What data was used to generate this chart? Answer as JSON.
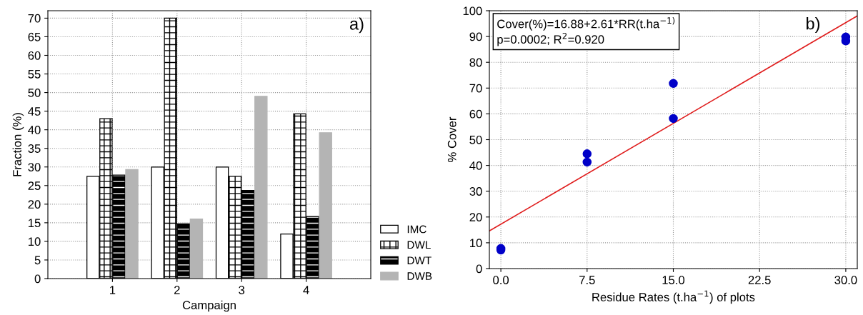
{
  "chart_data": [
    {
      "type": "bar",
      "xlabel": "Campaign",
      "ylabel": "Fraction (%)",
      "categories": [
        "1",
        "2",
        "3",
        "4"
      ],
      "series": [
        {
          "name": "IMC",
          "color": "#ffffff",
          "values": [
            27.5,
            30,
            30,
            12
          ]
        },
        {
          "name": "DWL",
          "color": "#000000",
          "values": [
            43,
            70,
            27.5,
            44.3
          ]
        },
        {
          "name": "DWT",
          "color": "#000000",
          "values": [
            27.8,
            14.7,
            23.7,
            16.7
          ]
        },
        {
          "name": "DWB",
          "color": "#b4b4b4",
          "values": [
            29.3,
            16,
            49,
            39.2
          ]
        }
      ],
      "ylim": [
        0,
        72
      ],
      "yticks": [
        0,
        5,
        10,
        15,
        20,
        25,
        30,
        35,
        40,
        45,
        50,
        55,
        60,
        65,
        70
      ],
      "grid": true,
      "legend": "bottom right",
      "annotations": [
        "a)"
      ]
    },
    {
      "type": "scatter",
      "xlabel": "Residue Rates (t.ha$^{−1}$) of plots",
      "ylabel": "% Cover",
      "series": [
        {
          "type": "scatter",
          "color": "#0000c8",
          "marker": "circle",
          "x": [
            0,
            0,
            7.5,
            7.5,
            15,
            15,
            30,
            30
          ],
          "values": [
            7.8,
            7.2,
            44.5,
            41.3,
            71.8,
            58.2,
            89.8,
            88.3
          ]
        },
        {
          "type": "line",
          "color": "#e02020",
          "x": [
            -1,
            31
          ],
          "values": [
            14.6,
            98
          ]
        }
      ],
      "xlim": [
        -1,
        31
      ],
      "xticks": [
        {
          "value": 0,
          "label": "0.0"
        },
        7.5,
        {
          "value": 15,
          "label": "15.0"
        },
        22.5,
        {
          "value": 30,
          "label": "30.0"
        }
      ],
      "ylim": [
        0,
        100
      ],
      "yticks": [
        0,
        10,
        20,
        30,
        40,
        50,
        60,
        70,
        80,
        90,
        100
      ],
      "grid": true,
      "annotations": [
        "Cover(%)=16.88+2.61*RR(t.ha$^{−1)}$",
        "p=0.0002; R$^{2}$=0.920",
        "b)"
      ]
    }
  ]
}
